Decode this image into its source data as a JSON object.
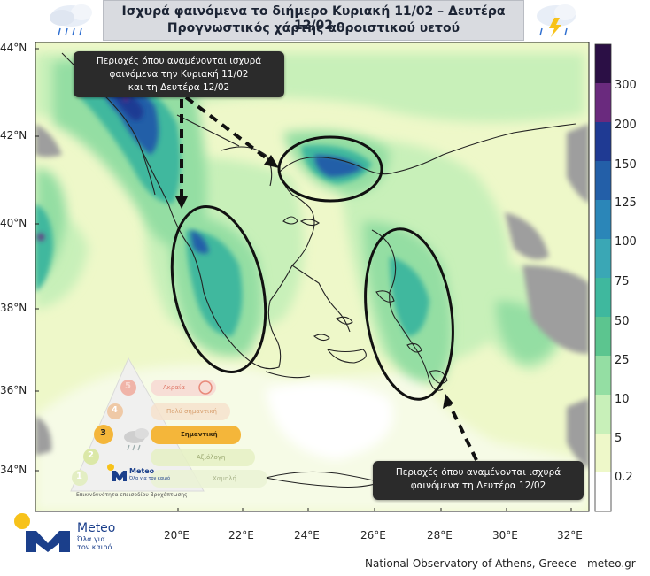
{
  "header": {
    "title_line1": "Ισχυρά φαινόμενα το διήμερο Κυριακή 11/02 – Δευτέρα 12/02",
    "title_line2": "Προγνωστικός χάρτης αθροιστικού υετού",
    "icon_left": "rain-cloud-icon",
    "icon_right": "thunderstorm-cloud-icon"
  },
  "map": {
    "lat_ticks": [
      "44°N",
      "42°N",
      "40°N",
      "38°N",
      "36°N",
      "34°N"
    ],
    "lon_ticks": [
      "20°E",
      "22°E",
      "24°E",
      "26°E",
      "28°E",
      "30°E",
      "32°E"
    ]
  },
  "colorbar": {
    "labels": [
      "300",
      "200",
      "150",
      "125",
      "100",
      "75",
      "50",
      "25",
      "10",
      "5",
      "0.2"
    ],
    "colors": [
      "#2b0f45",
      "#6a2a7e",
      "#1f3a93",
      "#235fa8",
      "#2b86b8",
      "#3aa7b5",
      "#3fb89e",
      "#5cc58f",
      "#94dea3",
      "#c8f0b9",
      "#eef8c9",
      "#ffffff"
    ]
  },
  "callouts": {
    "top_left": [
      "Περιοχές όπου αναμένονται ισχυρά",
      "φαινόμενα την Κυριακή 11/02",
      "και τη Δευτέρα 12/02"
    ],
    "bottom_right": [
      "Περιοχές όπου αναμένονται ισχυρά",
      "φαινόμενα τη Δευτέρα 12/02"
    ]
  },
  "legend": {
    "levels": [
      {
        "num": "5",
        "label": "Ακραία"
      },
      {
        "num": "4",
        "label": "Πολύ σημαντική"
      },
      {
        "num": "3",
        "label": "Σημαντική"
      },
      {
        "num": "2",
        "label": "Αξιόλογη"
      },
      {
        "num": "1",
        "label": "Χαμηλή"
      }
    ],
    "active_level": "3",
    "caption": "Επικινδυνότητα επεισοδίου βροχόπτωσης",
    "brand": "Meteo",
    "brand_sub": "Όλα για τον καιρό"
  },
  "logo": {
    "name": "Meteo",
    "tagline_line1": "Όλα για",
    "tagline_line2": "τον καιρό"
  },
  "footer": {
    "credit": "National Observatory of Athens, Greece - meteo.gr"
  }
}
